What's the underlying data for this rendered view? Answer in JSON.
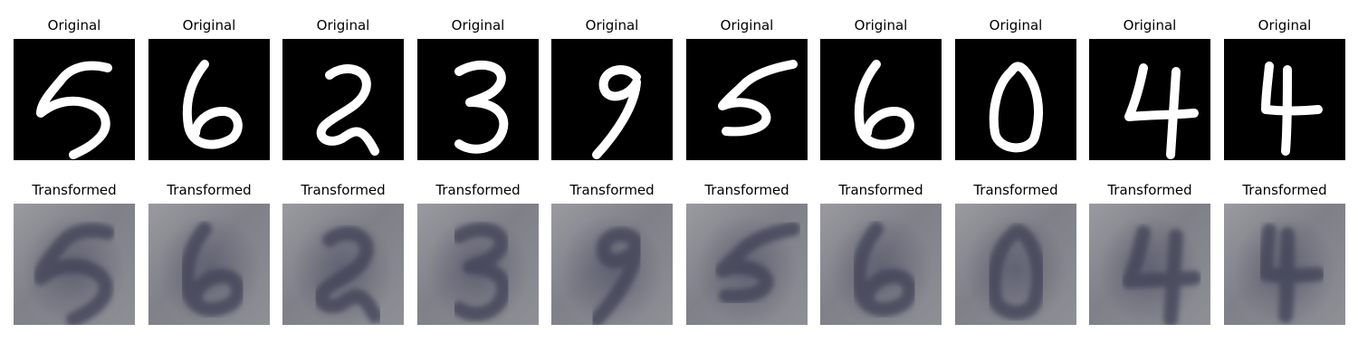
{
  "rows": [
    {
      "title": "Original"
    },
    {
      "title": "Transformed"
    }
  ],
  "originals": [
    {
      "digit": "5"
    },
    {
      "digit": "6"
    },
    {
      "digit": "2"
    },
    {
      "digit": "3"
    },
    {
      "digit": "9"
    },
    {
      "digit": "5"
    },
    {
      "digit": "6"
    },
    {
      "digit": "0"
    },
    {
      "digit": "4"
    },
    {
      "digit": "4"
    }
  ],
  "transformed": [
    {
      "digit": "5"
    },
    {
      "digit": "6"
    },
    {
      "digit": "2"
    },
    {
      "digit": "3"
    },
    {
      "digit": "9"
    },
    {
      "digit": "5"
    },
    {
      "digit": "6"
    },
    {
      "digit": "0"
    },
    {
      "digit": "4"
    },
    {
      "digit": "4"
    }
  ],
  "colors": {
    "original_background": "#000000",
    "original_stroke": "#ffffff",
    "transformed_stroke": "#3f4257"
  }
}
